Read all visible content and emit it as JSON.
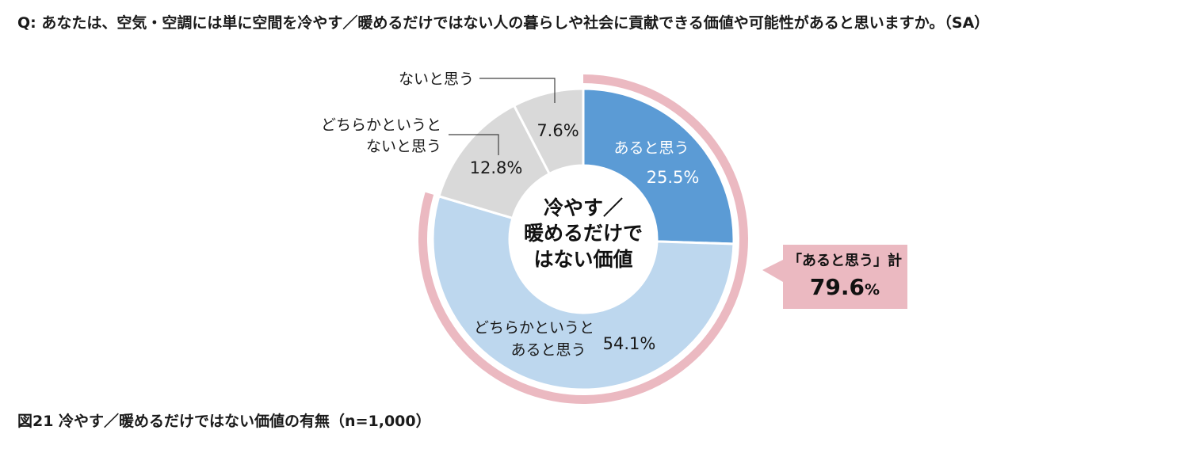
{
  "question": "Q:  あなたは、空気・空調には単に空間を冷やす／暖めるだけではない人の暮らしや社会に貢献できる価値や可能性があると思いますか。（SA）",
  "caption": "図21   冷やす／暖めるだけではない価値の有無（n=1,000）",
  "chart_data": {
    "type": "pie",
    "subtype": "donut",
    "title": "冷やす／暖めるだけではない価値",
    "center_label": [
      "冷やす／",
      "暖めるだけで",
      "はない価値"
    ],
    "series": [
      {
        "name": "あると思う",
        "label_lines": [
          "あると思う"
        ],
        "value": 25.5,
        "value_label": "25.5%",
        "color": "#5b9bd5",
        "label_color": "#ffffff"
      },
      {
        "name": "どちらかというとあると思う",
        "label_lines": [
          "どちらかというと",
          "あると思う"
        ],
        "value": 54.1,
        "value_label": "54.1%",
        "color": "#bdd7ee",
        "label_color": "#1a1a1a"
      },
      {
        "name": "どちらかというとないと思う",
        "label_lines": [
          "どちらかというと",
          "ないと思う"
        ],
        "value": 12.8,
        "value_label": "12.8%",
        "color": "#d9d9d9",
        "label_color": "#1a1a1a"
      },
      {
        "name": "ないと思う",
        "label_lines": [
          "ないと思う"
        ],
        "value": 7.6,
        "value_label": "7.6%",
        "color": "#d9d9d9",
        "label_color": "#1a1a1a"
      }
    ],
    "highlight": {
      "label": "「あると思う」計",
      "value": 79.6,
      "value_text": "79.6",
      "unit": "%",
      "color": "#ebb9c1"
    }
  }
}
